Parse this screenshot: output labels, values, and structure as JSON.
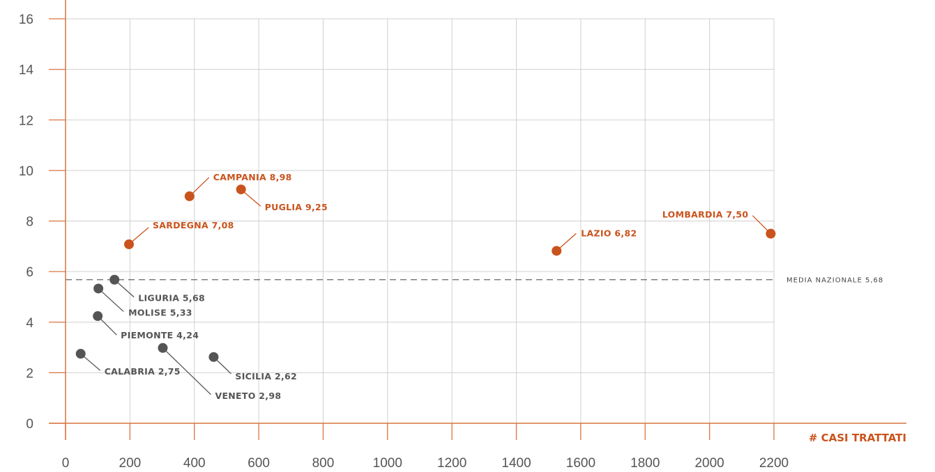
{
  "chart_data": {
    "type": "scatter",
    "xlabel": "# CASI TRATTATI",
    "ylabel": "",
    "xlim": [
      0,
      2200
    ],
    "ylim": [
      0,
      16
    ],
    "x_ticks": [
      "0",
      "200",
      "400",
      "600",
      "800",
      "1000",
      "1200",
      "1400",
      "1600",
      "1800",
      "2000",
      "2200"
    ],
    "y_ticks": [
      "0",
      "2",
      "4",
      "6",
      "8",
      "10",
      "12",
      "14",
      "16"
    ],
    "grid": true,
    "reference_line": {
      "label": "MEDIA NAZIONALE 5,68",
      "y": 5.68
    },
    "points": [
      {
        "label": "CAMPANIA 8,98",
        "x": 385,
        "y": 8.98,
        "highlight": true
      },
      {
        "label": "PUGLIA 9,25",
        "x": 545,
        "y": 9.25,
        "highlight": true
      },
      {
        "label": "SARDEGNA 7,08",
        "x": 197,
        "y": 7.08,
        "highlight": true
      },
      {
        "label": "LAZIO 6,82",
        "x": 1525,
        "y": 6.82,
        "highlight": true
      },
      {
        "label": "LOMBARDIA 7,50",
        "x": 2190,
        "y": 7.5,
        "highlight": true
      },
      {
        "label": "LIGURIA 5,68",
        "x": 152,
        "y": 5.68,
        "highlight": false
      },
      {
        "label": "MOLISE 5,33",
        "x": 102,
        "y": 5.33,
        "highlight": false
      },
      {
        "label": "PIEMONTE 4,24",
        "x": 100,
        "y": 4.24,
        "highlight": false
      },
      {
        "label": "CALABRIA 2,75",
        "x": 47,
        "y": 2.75,
        "highlight": false
      },
      {
        "label": "VENETO 2,98",
        "x": 302,
        "y": 2.98,
        "highlight": false
      },
      {
        "label": "SICILIA 2,62",
        "x": 460,
        "y": 2.62,
        "highlight": false
      }
    ],
    "colors": {
      "highlight": "#c9531c",
      "default": "#555555",
      "axis": "#d9743e",
      "grid": "#d0d0d0"
    }
  }
}
